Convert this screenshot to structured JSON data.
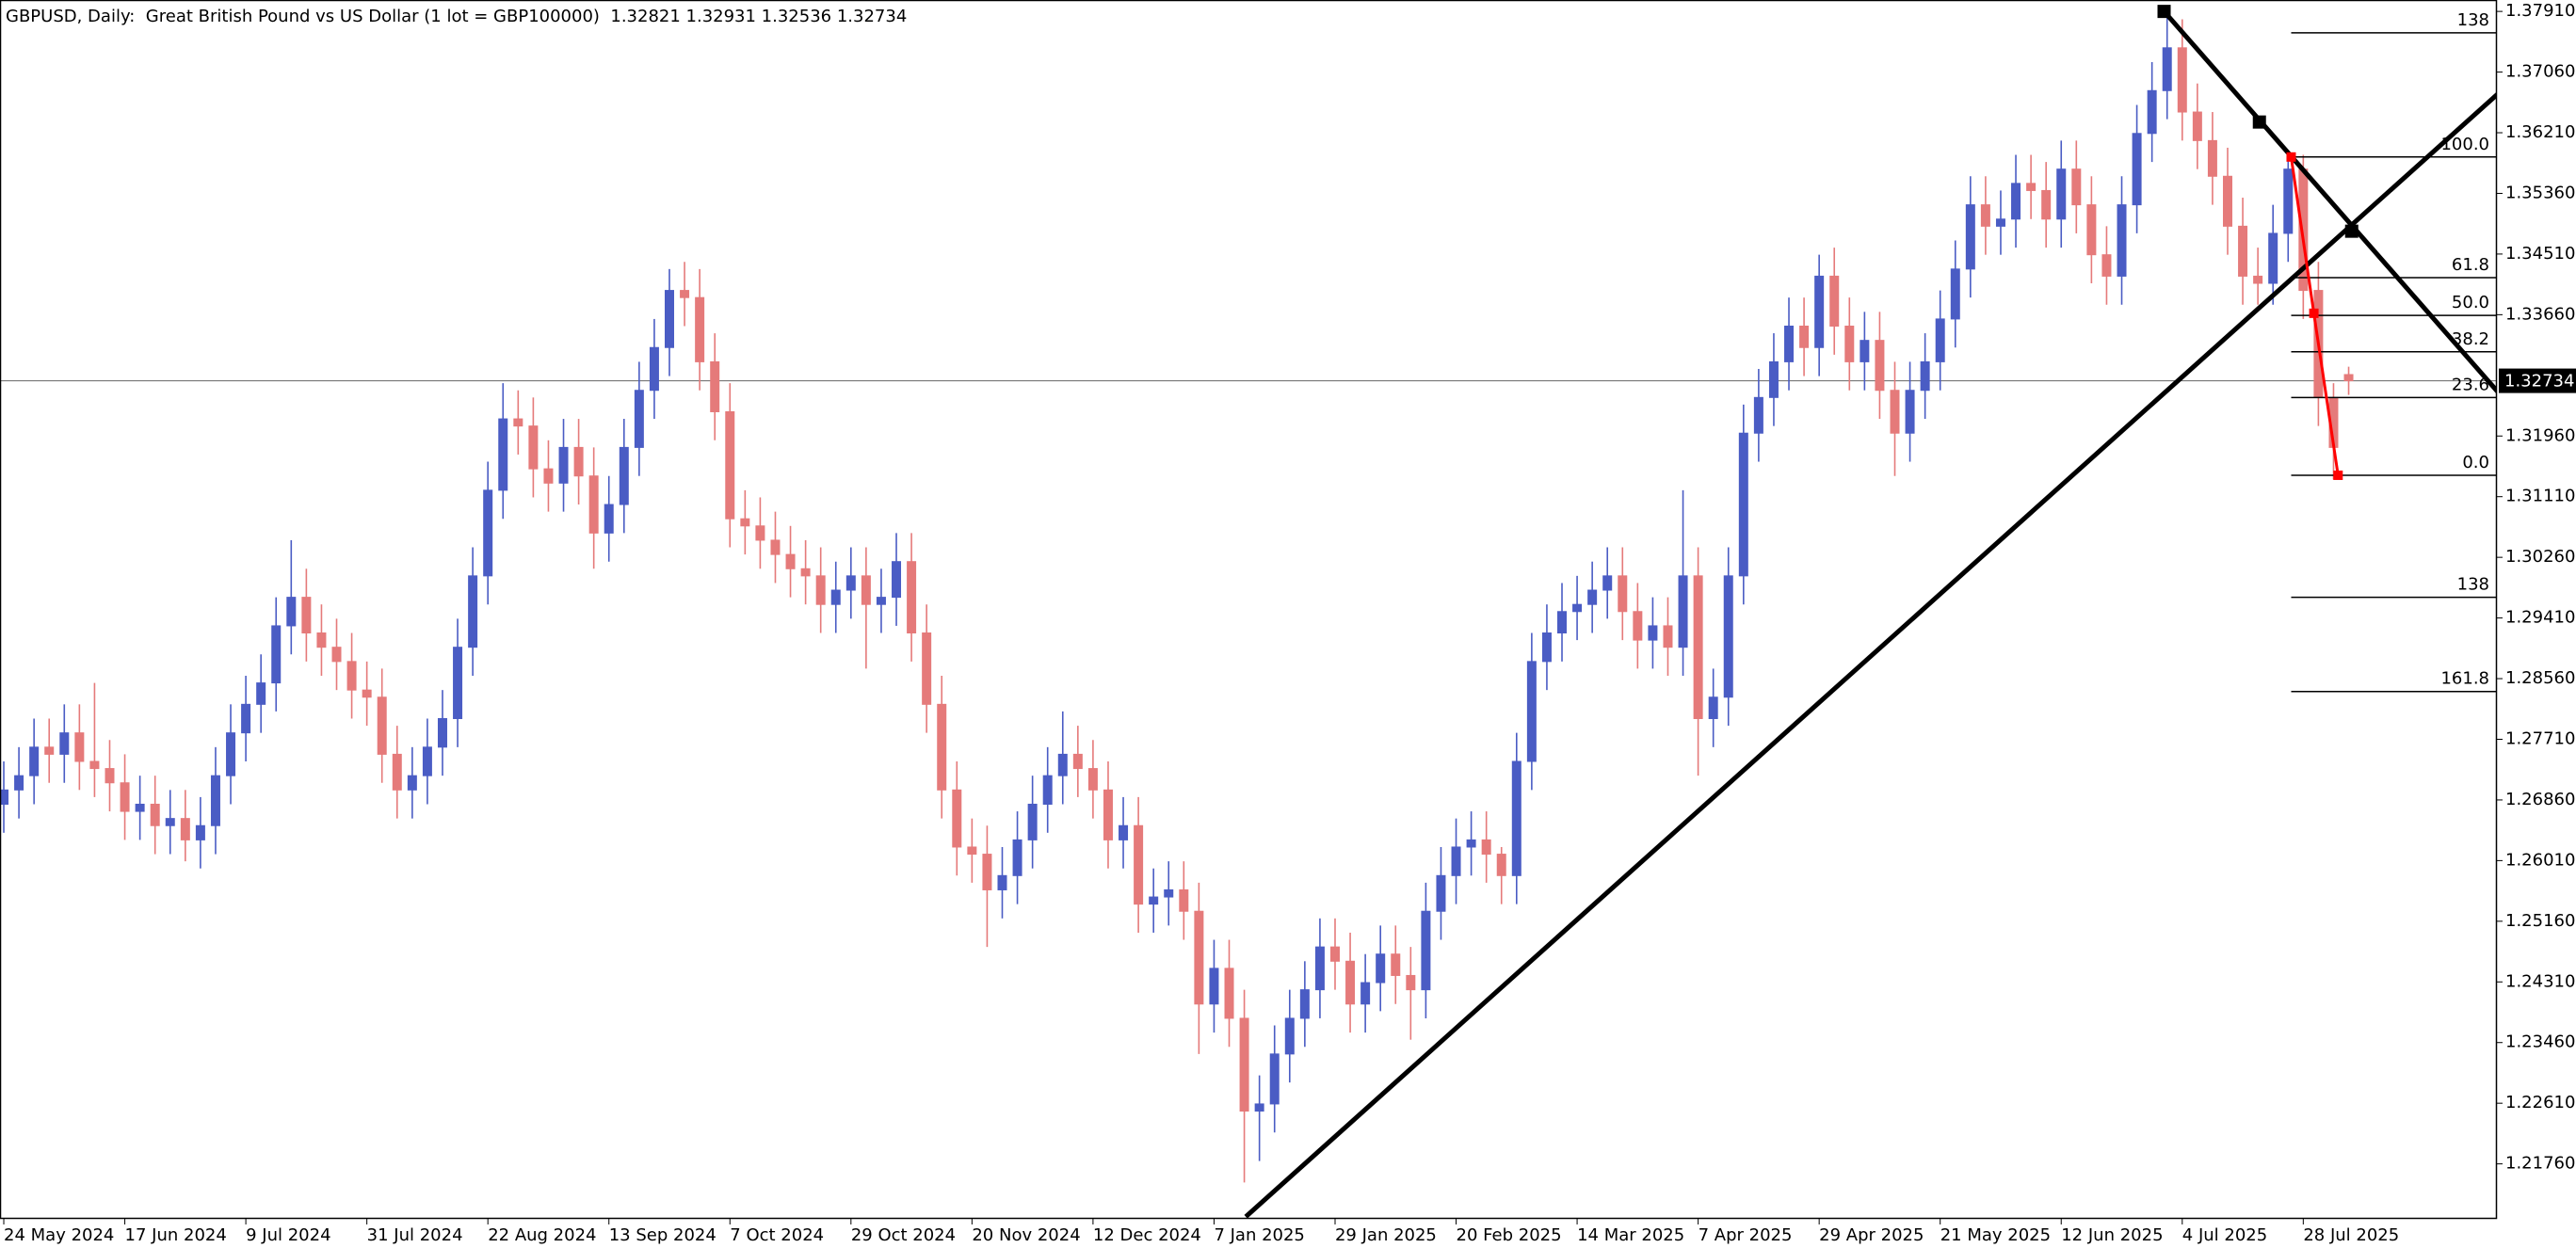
{
  "chart_data": {
    "type": "candlestick",
    "title": "GBPUSD, Daily:  Great British Pound vs US Dollar (1 lot = GBP100000)  1.32821 1.32931 1.32536 1.32734",
    "categories": [
      "24 May 2024",
      null,
      null,
      null,
      null,
      null,
      null,
      null,
      "17 Jun 2024",
      null,
      null,
      null,
      null,
      null,
      null,
      null,
      "9 Jul 2024",
      null,
      null,
      null,
      null,
      null,
      null,
      null,
      "31 Jul 2024",
      null,
      null,
      null,
      null,
      null,
      null,
      null,
      "22 Aug 2024",
      null,
      null,
      null,
      null,
      null,
      null,
      null,
      "13 Sep 2024",
      null,
      null,
      null,
      null,
      null,
      null,
      null,
      "7 Oct 2024",
      null,
      null,
      null,
      null,
      null,
      null,
      null,
      "29 Oct 2024",
      null,
      null,
      null,
      null,
      null,
      null,
      null,
      "20 Nov 2024",
      null,
      null,
      null,
      null,
      null,
      null,
      null,
      "12 Dec 2024",
      null,
      null,
      null,
      null,
      null,
      null,
      null,
      "7 Jan 2025",
      null,
      null,
      null,
      null,
      null,
      null,
      null,
      "29 Jan 2025",
      null,
      null,
      null,
      null,
      null,
      null,
      null,
      "20 Feb 2025",
      null,
      null,
      null,
      null,
      null,
      null,
      null,
      "14 Mar 2025",
      null,
      null,
      null,
      null,
      null,
      null,
      null,
      "7 Apr 2025",
      null,
      null,
      null,
      null,
      null,
      null,
      null,
      "29 Apr 2025",
      null,
      null,
      null,
      null,
      null,
      null,
      null,
      "21 May 2025",
      null,
      null,
      null,
      null,
      null,
      null,
      null,
      "12 Jun 2025",
      null,
      null,
      null,
      null,
      null,
      null,
      null,
      "4 Jul 2025",
      null,
      null,
      null,
      null,
      null,
      null,
      null,
      "28 Jul 2025",
      null,
      null,
      null
    ],
    "open": [
      1.268,
      1.27,
      1.272,
      1.276,
      1.275,
      1.278,
      1.274,
      1.273,
      1.271,
      1.267,
      1.268,
      1.265,
      1.266,
      1.263,
      1.265,
      1.272,
      1.278,
      1.282,
      1.285,
      1.293,
      1.297,
      1.292,
      1.29,
      1.288,
      1.284,
      1.283,
      1.275,
      1.27,
      1.272,
      1.276,
      1.28,
      1.29,
      1.3,
      1.312,
      1.322,
      1.321,
      1.315,
      1.313,
      1.318,
      1.314,
      1.306,
      1.31,
      1.318,
      1.326,
      1.332,
      1.34,
      1.339,
      1.33,
      1.323,
      1.308,
      1.307,
      1.305,
      1.303,
      1.301,
      1.3,
      1.296,
      1.298,
      1.3,
      1.296,
      1.297,
      1.302,
      1.292,
      1.282,
      1.27,
      1.262,
      1.261,
      1.256,
      1.258,
      1.263,
      1.268,
      1.272,
      1.275,
      1.273,
      1.27,
      1.263,
      1.265,
      1.254,
      1.255,
      1.256,
      1.253,
      1.24,
      1.245,
      1.238,
      1.225,
      1.226,
      1.233,
      1.238,
      1.242,
      1.248,
      1.246,
      1.24,
      1.243,
      1.247,
      1.244,
      1.242,
      1.253,
      1.258,
      1.262,
      1.263,
      1.261,
      1.258,
      1.274,
      1.288,
      1.292,
      1.295,
      1.296,
      1.298,
      1.3,
      1.295,
      1.291,
      1.293,
      1.29,
      1.3,
      1.28,
      1.283,
      1.3,
      1.32,
      1.325,
      1.33,
      1.335,
      1.332,
      1.342,
      1.335,
      1.33,
      1.333,
      1.326,
      1.32,
      1.326,
      1.33,
      1.336,
      1.343,
      1.352,
      1.349,
      1.35,
      1.355,
      1.354,
      1.35,
      1.357,
      1.352,
      1.345,
      1.342,
      1.352,
      1.362,
      1.368,
      1.374,
      1.365,
      1.361,
      1.356,
      1.349,
      1.342,
      1.341,
      1.348,
      1.357,
      1.34,
      1.325,
      1.32821
    ],
    "high": [
      1.274,
      1.276,
      1.28,
      1.28,
      1.282,
      1.282,
      1.285,
      1.277,
      1.275,
      1.272,
      1.272,
      1.27,
      1.27,
      1.269,
      1.276,
      1.282,
      1.286,
      1.289,
      1.297,
      1.305,
      1.301,
      1.296,
      1.294,
      1.292,
      1.288,
      1.287,
      1.279,
      1.276,
      1.28,
      1.284,
      1.294,
      1.304,
      1.316,
      1.327,
      1.326,
      1.325,
      1.319,
      1.322,
      1.322,
      1.318,
      1.314,
      1.322,
      1.33,
      1.336,
      1.343,
      1.344,
      1.343,
      1.334,
      1.327,
      1.312,
      1.311,
      1.309,
      1.307,
      1.305,
      1.304,
      1.302,
      1.304,
      1.304,
      1.301,
      1.306,
      1.306,
      1.296,
      1.286,
      1.274,
      1.266,
      1.265,
      1.262,
      1.267,
      1.272,
      1.276,
      1.281,
      1.279,
      1.277,
      1.274,
      1.269,
      1.269,
      1.259,
      1.26,
      1.26,
      1.257,
      1.249,
      1.249,
      1.242,
      1.23,
      1.237,
      1.242,
      1.246,
      1.252,
      1.252,
      1.25,
      1.247,
      1.251,
      1.251,
      1.248,
      1.257,
      1.262,
      1.266,
      1.267,
      1.267,
      1.262,
      1.278,
      1.292,
      1.296,
      1.299,
      1.3,
      1.302,
      1.304,
      1.304,
      1.299,
      1.297,
      1.297,
      1.312,
      1.304,
      1.287,
      1.304,
      1.324,
      1.329,
      1.334,
      1.339,
      1.339,
      1.345,
      1.346,
      1.339,
      1.337,
      1.337,
      1.33,
      1.33,
      1.334,
      1.34,
      1.347,
      1.356,
      1.356,
      1.354,
      1.359,
      1.359,
      1.358,
      1.361,
      1.361,
      1.356,
      1.349,
      1.356,
      1.366,
      1.372,
      1.379,
      1.378,
      1.369,
      1.365,
      1.36,
      1.353,
      1.346,
      1.352,
      1.359,
      1.359,
      1.344,
      1.327,
      1.32931
    ],
    "low": [
      1.264,
      1.266,
      1.268,
      1.271,
      1.271,
      1.27,
      1.269,
      1.267,
      1.263,
      1.263,
      1.261,
      1.261,
      1.26,
      1.259,
      1.261,
      1.268,
      1.274,
      1.278,
      1.281,
      1.289,
      1.288,
      1.286,
      1.284,
      1.28,
      1.279,
      1.271,
      1.266,
      1.266,
      1.268,
      1.272,
      1.276,
      1.286,
      1.296,
      1.308,
      1.317,
      1.311,
      1.309,
      1.309,
      1.31,
      1.301,
      1.302,
      1.306,
      1.314,
      1.322,
      1.328,
      1.335,
      1.326,
      1.319,
      1.304,
      1.303,
      1.301,
      1.299,
      1.297,
      1.296,
      1.292,
      1.292,
      1.294,
      1.287,
      1.292,
      1.293,
      1.288,
      1.278,
      1.266,
      1.258,
      1.257,
      1.248,
      1.252,
      1.254,
      1.259,
      1.264,
      1.268,
      1.269,
      1.266,
      1.259,
      1.259,
      1.25,
      1.25,
      1.251,
      1.249,
      1.233,
      1.236,
      1.234,
      1.215,
      1.218,
      1.222,
      1.229,
      1.234,
      1.238,
      1.242,
      1.236,
      1.236,
      1.239,
      1.24,
      1.235,
      1.238,
      1.249,
      1.254,
      1.258,
      1.257,
      1.254,
      1.254,
      1.27,
      1.284,
      1.288,
      1.291,
      1.292,
      1.294,
      1.291,
      1.287,
      1.287,
      1.286,
      1.286,
      1.272,
      1.276,
      1.279,
      1.296,
      1.316,
      1.321,
      1.326,
      1.328,
      1.328,
      1.331,
      1.326,
      1.326,
      1.322,
      1.314,
      1.316,
      1.322,
      1.326,
      1.332,
      1.339,
      1.345,
      1.345,
      1.346,
      1.35,
      1.346,
      1.346,
      1.348,
      1.341,
      1.338,
      1.338,
      1.348,
      1.358,
      1.364,
      1.361,
      1.357,
      1.352,
      1.345,
      1.338,
      1.338,
      1.338,
      1.344,
      1.336,
      1.321,
      1.3135,
      1.32536
    ],
    "close": [
      1.27,
      1.272,
      1.276,
      1.275,
      1.278,
      1.274,
      1.273,
      1.271,
      1.267,
      1.268,
      1.265,
      1.266,
      1.263,
      1.265,
      1.272,
      1.278,
      1.282,
      1.285,
      1.293,
      1.297,
      1.292,
      1.29,
      1.288,
      1.284,
      1.283,
      1.275,
      1.27,
      1.272,
      1.276,
      1.28,
      1.29,
      1.3,
      1.312,
      1.322,
      1.321,
      1.315,
      1.313,
      1.318,
      1.314,
      1.306,
      1.31,
      1.318,
      1.326,
      1.332,
      1.34,
      1.339,
      1.33,
      1.323,
      1.308,
      1.307,
      1.305,
      1.303,
      1.301,
      1.3,
      1.296,
      1.298,
      1.3,
      1.296,
      1.297,
      1.302,
      1.292,
      1.282,
      1.27,
      1.262,
      1.261,
      1.256,
      1.258,
      1.263,
      1.268,
      1.272,
      1.275,
      1.273,
      1.27,
      1.263,
      1.265,
      1.254,
      1.255,
      1.256,
      1.253,
      1.24,
      1.245,
      1.238,
      1.225,
      1.226,
      1.233,
      1.238,
      1.242,
      1.248,
      1.246,
      1.24,
      1.243,
      1.247,
      1.244,
      1.242,
      1.253,
      1.258,
      1.262,
      1.263,
      1.261,
      1.258,
      1.274,
      1.288,
      1.292,
      1.295,
      1.296,
      1.298,
      1.3,
      1.295,
      1.291,
      1.293,
      1.29,
      1.3,
      1.28,
      1.283,
      1.3,
      1.32,
      1.325,
      1.33,
      1.335,
      1.332,
      1.342,
      1.335,
      1.33,
      1.333,
      1.326,
      1.32,
      1.326,
      1.33,
      1.336,
      1.343,
      1.352,
      1.349,
      1.35,
      1.355,
      1.354,
      1.35,
      1.357,
      1.352,
      1.345,
      1.342,
      1.352,
      1.362,
      1.368,
      1.374,
      1.365,
      1.361,
      1.356,
      1.349,
      1.342,
      1.341,
      1.348,
      1.357,
      1.34,
      1.325,
      1.318,
      1.32734
    ],
    "up_color": "#4a5cc4",
    "down_color": "#e57a7a",
    "xlim": [
      -0.25,
      164.8
    ],
    "ylim": [
      1.2099,
      1.3807
    ],
    "yticks": [
      {
        "value": 1.3791,
        "label": "1.37910"
      },
      {
        "value": 1.3706,
        "label": "1.37060"
      },
      {
        "value": 1.3621,
        "label": "1.36210"
      },
      {
        "value": 1.3536,
        "label": "1.35360"
      },
      {
        "value": 1.3451,
        "label": "1.34510"
      },
      {
        "value": 1.3366,
        "label": "1.33660"
      },
      {
        "value": 1.3196,
        "label": "1.31960"
      },
      {
        "value": 1.3111,
        "label": "1.31110"
      },
      {
        "value": 1.3026,
        "label": "1.30260"
      },
      {
        "value": 1.2941,
        "label": "1.29410"
      },
      {
        "value": 1.2856,
        "label": "1.28560"
      },
      {
        "value": 1.2771,
        "label": "1.27710"
      },
      {
        "value": 1.2686,
        "label": "1.26860"
      },
      {
        "value": 1.2601,
        "label": "1.26010"
      },
      {
        "value": 1.2516,
        "label": "1.25160"
      },
      {
        "value": 1.2431,
        "label": "1.24310"
      },
      {
        "value": 1.2346,
        "label": "1.23460"
      },
      {
        "value": 1.2261,
        "label": "1.22610"
      },
      {
        "value": 1.2176,
        "label": "1.21760"
      }
    ],
    "bid": 1.32734,
    "trendlines": [
      {
        "x": [
          82.1,
          165.1
        ],
        "y": [
          1.2102,
          1.368
        ],
        "color": "#000000"
      },
      {
        "x": [
          142.8,
          165.1
        ],
        "y": [
          1.3791,
          1.3252
        ],
        "color": "#000000"
      }
    ],
    "anchors": {
      "x": [
        142.8,
        149.1,
        155.2
      ],
      "y": [
        1.3791,
        1.3636,
        1.3483
      ],
      "color": "#000000"
    },
    "fib": {
      "x_start": 151.2,
      "color": "#000000",
      "levels": [
        {
          "label": "138",
          "price": 1.3761
        },
        {
          "label": "100.0",
          "price": 1.3587
        },
        {
          "label": "61.8",
          "price": 1.3418
        },
        {
          "label": "50.0",
          "price": 1.3365
        },
        {
          "label": "38.2",
          "price": 1.3314
        },
        {
          "label": "23.6",
          "price": 1.325
        },
        {
          "label": "0.0",
          "price": 1.3141
        },
        {
          "label": "138",
          "price": 1.297
        },
        {
          "label": "161.8",
          "price": 1.2838
        }
      ]
    },
    "zigzag": {
      "x": [
        151.2,
        152.7,
        154.3
      ],
      "y": [
        1.3587,
        1.3368,
        1.3141
      ],
      "color": "#ff0000"
    }
  }
}
